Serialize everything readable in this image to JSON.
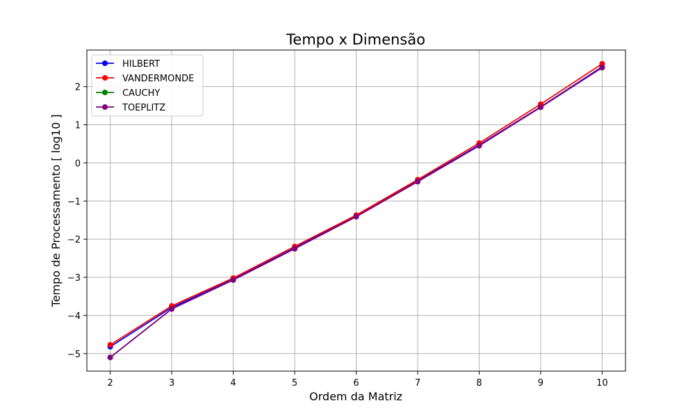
{
  "chart_data": {
    "type": "line",
    "title": "Tempo x Dimensão",
    "xlabel": "Ordem da Matriz",
    "ylabel": "Tempo de Processamento [ log10 ]",
    "x": [
      2,
      3,
      4,
      5,
      6,
      7,
      8,
      9,
      10
    ],
    "xlim": [
      1.62,
      10.38
    ],
    "ylim": [
      -5.46,
      2.96
    ],
    "x_ticks": [
      2,
      3,
      4,
      5,
      6,
      7,
      8,
      9,
      10
    ],
    "y_ticks": [
      -5,
      -4,
      -3,
      -2,
      -1,
      0,
      1,
      2
    ],
    "grid": true,
    "legend_position": "top-left",
    "series": [
      {
        "name": "HILBERT",
        "color": "#0000ff",
        "values": [
          -4.82,
          -3.79,
          -3.05,
          -2.23,
          -1.39,
          -0.47,
          0.47,
          1.47,
          2.52
        ]
      },
      {
        "name": "VANDERMONDE",
        "color": "#ff0000",
        "values": [
          -4.77,
          -3.75,
          -3.02,
          -2.19,
          -1.37,
          -0.44,
          0.52,
          1.54,
          2.6
        ]
      },
      {
        "name": "CAUCHY",
        "color": "#008000",
        "values": [
          -5.1,
          -3.83,
          -3.07,
          -2.25,
          -1.41,
          -0.49,
          0.45,
          1.46,
          2.5
        ]
      },
      {
        "name": "TOEPLITZ",
        "color": "#800080",
        "values": [
          -5.1,
          -3.83,
          -3.07,
          -2.25,
          -1.41,
          -0.49,
          0.45,
          1.46,
          2.5
        ]
      }
    ]
  }
}
